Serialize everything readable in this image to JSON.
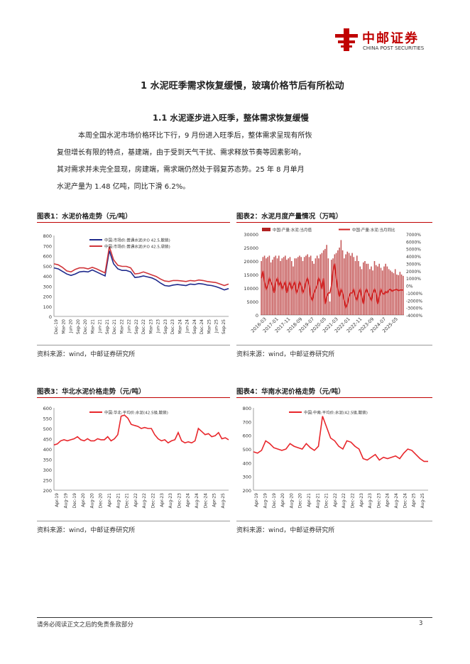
{
  "header": {
    "logo_cn": "中邮证券",
    "logo_en": "CHINA POST SECURITIES"
  },
  "section": {
    "h1": "1 水泥旺季需求恢复缓慢，玻璃价格节后有所松动",
    "h2": "1.1 水泥逐步进入旺季，整体需求恢复缓慢"
  },
  "body": {
    "lines": [
      "本周全国水泥市场价格环比下行，9 月份进入旺季后，整体需求呈现有所恢",
      "复但增长有限的特点，基建端，由于受到天气干扰、需求释放节奏等因素影响，",
      "其对需求并未完全显现，房建端，需求端仍然处于弱复苏态势。25 年 8 月单月",
      "水泥产量为 1.48 亿吨，同比下滑 6.2%。"
    ]
  },
  "figures": [
    {
      "title": "图表1：水泥价格走势（元/吨）",
      "source": "资料来源：wind，中邮证券研究所"
    },
    {
      "title": "图表2：水泥月度产量情况（万吨）",
      "source": "资料来源：wind，中邮证券研究所"
    },
    {
      "title": "图表3：华北水泥价格走势（元/吨）",
      "source": "资料来源：wind，中邮证券研究所"
    },
    {
      "title": "图表4：华南水泥价格走势（元/吨）",
      "source": "资料来源：wind，中邮证券研究所"
    }
  ],
  "footer": {
    "disclaimer": "请务必阅读正文之后的免责条款部分",
    "page": "3"
  },
  "chart_data": [
    {
      "type": "line",
      "title": "",
      "ylim": [
        0,
        800
      ],
      "yticks": [
        "0",
        "100",
        "200",
        "300",
        "400",
        "500",
        "600",
        "700",
        "800"
      ],
      "xticks": [
        "Dec-19",
        "Mar-20",
        "Jun-20",
        "Sep-20",
        "Dec-20",
        "Mar-21",
        "Jun-21",
        "Sep-21",
        "Dec-21",
        "Mar-22",
        "Jun-22",
        "Sep-22",
        "Dec-22",
        "Mar-23",
        "Jun-23",
        "Sep-23",
        "Dec-23",
        "Mar-24",
        "Jun-24",
        "Sep-24",
        "Dec-24",
        "Mar-25",
        "Jun-25",
        "Sep-25"
      ],
      "legend": "top-left",
      "series": [
        {
          "name": "中国:市场价:普通水泥(P.O 42.5,散装)",
          "color": "#1f2a8c",
          "values": [
            480,
            470,
            445,
            420,
            405,
            420,
            440,
            445,
            440,
            460,
            440,
            420,
            400,
            650,
            520,
            470,
            455,
            455,
            440,
            385,
            390,
            400,
            390,
            380,
            360,
            330,
            305,
            300,
            310,
            315,
            310,
            305,
            320,
            315,
            325,
            320,
            310,
            305,
            295,
            280,
            262,
            275
          ]
        },
        {
          "name": "中国:市场价:普通水泥(P.O 42.5,袋装)",
          "color": "#d0353a",
          "values": [
            520,
            510,
            485,
            450,
            440,
            465,
            480,
            480,
            470,
            485,
            470,
            450,
            430,
            690,
            560,
            505,
            495,
            495,
            480,
            420,
            425,
            440,
            425,
            410,
            395,
            370,
            350,
            345,
            355,
            355,
            350,
            345,
            355,
            350,
            360,
            355,
            345,
            340,
            335,
            320,
            305,
            320
          ]
        }
      ]
    },
    {
      "type": "bar",
      "title": "",
      "ylim": [
        0,
        30000
      ],
      "yticks": [
        "0",
        "5000",
        "10000",
        "15000",
        "20000",
        "25000",
        "30000"
      ],
      "y2lim": [
        -4000,
        7000
      ],
      "y2ticks": [
        "7000%",
        "6000%",
        "5000%",
        "4000%",
        "3000%",
        "2000%",
        "1000%",
        "0%",
        "-1000%",
        "-2000%",
        "-3000%",
        "-4000%"
      ],
      "xticks": [
        "2016-03",
        "2017-01",
        "2017-11",
        "2018-09",
        "2019-07",
        "2020-05",
        "2021-03",
        "2022-01",
        "2022-11",
        "2023-09",
        "2024-07",
        "2025-05"
      ],
      "legend": "top",
      "series": [
        {
          "name": "中国:产量:水泥:当月值",
          "color": "#b22222",
          "values": [
            20000,
            21500,
            22000,
            21000,
            21500,
            22000,
            19500,
            20500,
            21500,
            22000,
            21000,
            22000,
            20000,
            21000,
            21500,
            22000,
            20500,
            21000,
            21500,
            20000,
            18000,
            21000,
            21000,
            21500,
            22000,
            21500,
            20000,
            21500,
            22000,
            22500,
            21500,
            22000,
            20000,
            19000,
            21000,
            22000,
            21000,
            22500,
            23000,
            24000,
            24500,
            26000,
            21000,
            5000,
            20500,
            21000,
            22500,
            23000,
            24000,
            25000,
            27800,
            24000,
            21000,
            22500,
            23500,
            23000,
            22000,
            23000,
            21500,
            20000,
            22000,
            20000,
            18000,
            17000,
            19500,
            20000,
            19000,
            19000,
            17000,
            18000,
            16500,
            20000,
            18500,
            18000,
            19000,
            17500,
            16500,
            18000,
            19000,
            18000,
            17000,
            16500,
            16000,
            15500,
            17000,
            15000,
            14800,
            16000,
            15000,
            14500
          ]
        },
        {
          "name": "中国:产量:水泥:当月同比",
          "color": "#d42020",
          "values": [
            10,
            20,
            5,
            -5,
            0,
            10,
            5,
            0,
            -10,
            5,
            10,
            0,
            5,
            -5,
            0,
            5,
            -10,
            0,
            5,
            -5,
            0,
            5,
            -10,
            -5,
            5,
            0,
            -10,
            -5,
            5,
            10,
            0,
            -15,
            -20,
            -10,
            -5,
            0,
            10,
            5,
            -5,
            10,
            -25,
            -15,
            -10,
            -10,
            0,
            20,
            30,
            10,
            -5,
            -15,
            -5,
            -10,
            -20,
            -30,
            -25,
            -15,
            -10,
            -10,
            -5,
            -15,
            -20,
            -10,
            -5,
            -15,
            -25,
            -10,
            -5,
            -10,
            -15,
            -20,
            -10,
            -5,
            -10,
            -25,
            -15,
            -5,
            -10,
            -12,
            -8,
            -10,
            -6,
            -5,
            -8,
            -6,
            -6,
            -5,
            -7,
            -6,
            -6,
            -6
          ]
        }
      ]
    },
    {
      "type": "line",
      "title": "",
      "ylim": [
        200,
        600
      ],
      "yticks": [
        "200",
        "250",
        "300",
        "350",
        "400",
        "450",
        "500",
        "550",
        "600"
      ],
      "xticks": [
        "Apr-19",
        "Aug-19",
        "Dec-19",
        "Apr-20",
        "Aug-20",
        "Dec-20",
        "Apr-21",
        "Aug-21",
        "Dec-21",
        "Apr-22",
        "Aug-22",
        "Dec-22",
        "Apr-23",
        "Aug-23",
        "Dec-23",
        "Apr-24",
        "Aug-24",
        "Dec-24",
        "Apr-25",
        "Aug-25"
      ],
      "legend": "top-left",
      "series": [
        {
          "name": "中国:华北:平均价:水泥(42.5级,散装)",
          "color": "#e8262b",
          "values": [
            420,
            425,
            440,
            445,
            440,
            445,
            450,
            460,
            445,
            440,
            450,
            440,
            440,
            450,
            445,
            445,
            460,
            440,
            450,
            470,
            560,
            565,
            550,
            520,
            515,
            510,
            500,
            505,
            500,
            500,
            470,
            450,
            440,
            445,
            430,
            440,
            445,
            480,
            440,
            430,
            435,
            430,
            440,
            500,
            485,
            470,
            475,
            460,
            465,
            480,
            450,
            455,
            445
          ]
        }
      ]
    },
    {
      "type": "line",
      "title": "",
      "ylim": [
        200,
        800
      ],
      "yticks": [
        "200",
        "300",
        "400",
        "500",
        "600",
        "700",
        "800"
      ],
      "xticks": [
        "Apr-19",
        "Aug-19",
        "Dec-19",
        "Apr-20",
        "Aug-20",
        "Dec-20",
        "Apr-21",
        "Aug-21",
        "Dec-21",
        "Apr-22",
        "Aug-22",
        "Dec-22",
        "Apr-23",
        "Aug-23",
        "Dec-23",
        "Apr-24",
        "Aug-24",
        "Dec-24",
        "Apr-25",
        "Aug-25"
      ],
      "legend": "top-left",
      "series": [
        {
          "name": "中国:中南:平均价:水泥(42.5级,散装)",
          "color": "#e8262b",
          "values": [
            480,
            470,
            490,
            560,
            540,
            510,
            500,
            490,
            500,
            540,
            520,
            510,
            500,
            540,
            510,
            490,
            520,
            740,
            660,
            580,
            560,
            520,
            500,
            560,
            550,
            520,
            500,
            430,
            420,
            440,
            460,
            420,
            440,
            430,
            440,
            450,
            430,
            470,
            500,
            490,
            460,
            430,
            410,
            410
          ]
        }
      ]
    }
  ]
}
